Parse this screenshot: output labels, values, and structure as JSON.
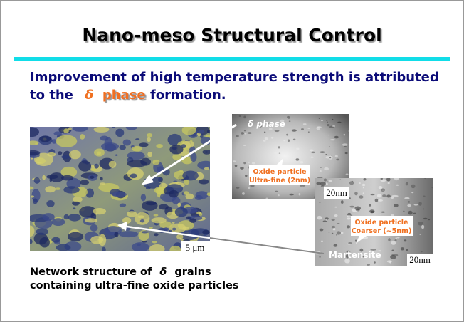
{
  "slide": {
    "title": "Nano-meso Structural Control",
    "statement": {
      "line1": "Improvement of high temperature strength is attributed",
      "line2_start": "to the",
      "symbol": "δ",
      "highlight": "phase",
      "line2_end": "formation."
    },
    "left_image": {
      "scale_bar": "5 μm"
    },
    "caption": {
      "line1_start": "Network structure of",
      "symbol": "δ",
      "line1_end": "grains",
      "line2": "containing ultra-fine oxide particles"
    },
    "top_image": {
      "label": "δ phase",
      "callout_line1": "Oxide particle",
      "callout_line2": "Ultra-fine (2nm)",
      "scale_bar": "20nm"
    },
    "bottom_image": {
      "callout_line1": "Oxide particle",
      "callout_line2": "Coarser (~5nm)",
      "label": "Martensite",
      "scale_bar": "20nm"
    }
  }
}
